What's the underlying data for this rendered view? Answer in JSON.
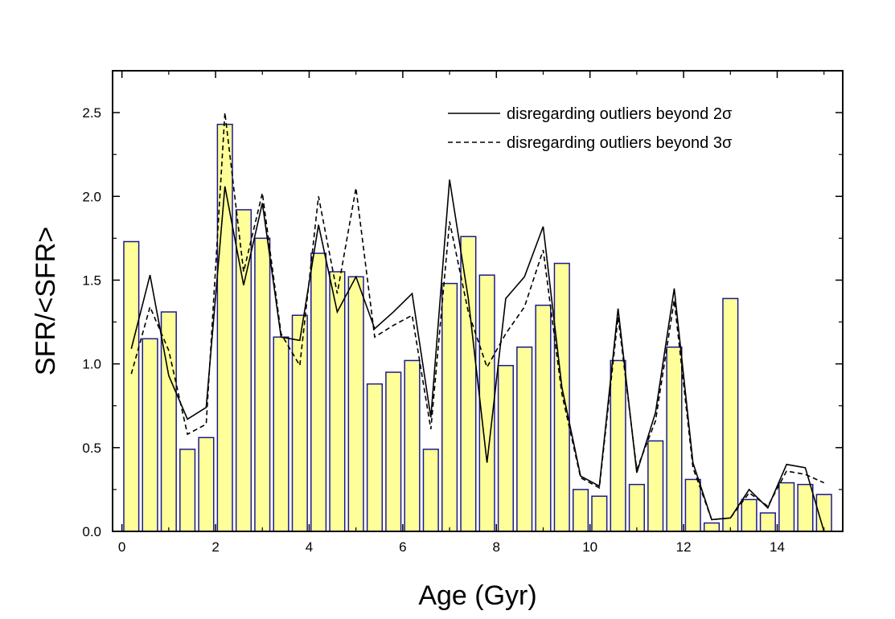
{
  "chart_data": {
    "type": "bar",
    "title": "",
    "xlabel": "Age (Gyr)",
    "ylabel": "SFR/<SFR>",
    "xlim": [
      -0.2,
      15.4
    ],
    "ylim": [
      0,
      2.75
    ],
    "x_ticks": [
      "0",
      "2",
      "4",
      "6",
      "8",
      "10",
      "12",
      "14"
    ],
    "y_ticks": [
      "0.0",
      "0.5",
      "1.0",
      "1.5",
      "2.0",
      "2.5"
    ],
    "colors": {
      "bar_fill": "#ffff99",
      "bar_edge": "#1a1a8c",
      "line": "#000000",
      "axis": "#000000"
    },
    "bar_width": 0.32,
    "bars": {
      "x": [
        0.2,
        0.6,
        1.0,
        1.4,
        1.8,
        2.2,
        2.6,
        3.0,
        3.4,
        3.8,
        4.2,
        4.6,
        5.0,
        5.4,
        5.8,
        6.2,
        6.6,
        7.0,
        7.4,
        7.8,
        8.2,
        8.6,
        9.0,
        9.4,
        9.8,
        10.2,
        10.6,
        11.0,
        11.4,
        11.8,
        12.2,
        12.6,
        13.0,
        13.4,
        13.8,
        14.2,
        14.6,
        15.0
      ],
      "values": [
        1.73,
        1.15,
        1.31,
        0.49,
        0.56,
        2.43,
        1.92,
        1.75,
        1.16,
        1.29,
        1.66,
        1.55,
        1.52,
        0.88,
        0.95,
        1.02,
        0.49,
        1.48,
        1.76,
        1.53,
        0.99,
        1.1,
        1.35,
        1.6,
        0.25,
        0.21,
        1.02,
        0.28,
        0.54,
        1.1,
        0.31,
        0.05,
        1.39,
        0.19,
        0.11,
        0.29,
        0.28,
        0.22
      ]
    },
    "series": [
      {
        "name": "disregarding outliers beyond 2σ",
        "style": "solid",
        "x": [
          0.2,
          0.6,
          1.0,
          1.4,
          1.8,
          2.2,
          2.6,
          3.0,
          3.4,
          3.8,
          4.2,
          4.6,
          5.0,
          5.4,
          5.8,
          6.2,
          6.6,
          7.0,
          7.4,
          7.8,
          8.2,
          8.6,
          9.0,
          9.4,
          9.8,
          10.2,
          10.6,
          11.0,
          11.4,
          11.8,
          12.2,
          12.6,
          13.0,
          13.4,
          13.8,
          14.2,
          14.6,
          15.0
        ],
        "values": [
          1.09,
          1.53,
          0.93,
          0.67,
          0.74,
          2.06,
          1.47,
          1.96,
          1.16,
          1.14,
          1.83,
          1.31,
          1.52,
          1.21,
          1.31,
          1.42,
          0.68,
          2.1,
          1.39,
          0.41,
          1.39,
          1.52,
          1.82,
          0.86,
          0.33,
          0.27,
          1.33,
          0.35,
          0.71,
          1.45,
          0.41,
          0.07,
          0.08,
          0.25,
          0.14,
          0.4,
          0.38,
          0.0
        ]
      },
      {
        "name": "disregarding outliers beyond 3σ",
        "style": "dashed",
        "x": [
          0.2,
          0.6,
          1.0,
          1.4,
          1.8,
          2.2,
          2.6,
          3.0,
          3.4,
          3.8,
          4.2,
          4.6,
          5.0,
          5.4,
          5.8,
          6.2,
          6.6,
          7.0,
          7.4,
          7.8,
          8.2,
          8.6,
          9.0,
          9.4,
          9.8,
          10.2,
          10.6,
          11.0,
          11.4,
          11.8,
          12.2,
          12.6,
          13.0,
          13.4,
          13.8,
          14.2,
          14.6,
          15.0
        ],
        "values": [
          0.94,
          1.34,
          1.08,
          0.58,
          0.64,
          2.5,
          1.55,
          2.02,
          1.18,
          0.99,
          2.0,
          1.42,
          2.05,
          1.16,
          1.23,
          1.29,
          0.61,
          1.85,
          1.31,
          0.98,
          1.18,
          1.34,
          1.68,
          0.82,
          0.32,
          0.26,
          1.28,
          0.37,
          0.66,
          1.38,
          0.38,
          0.07,
          0.08,
          0.23,
          0.15,
          0.36,
          0.34,
          0.29
        ]
      }
    ],
    "legend_position": "top-right"
  }
}
